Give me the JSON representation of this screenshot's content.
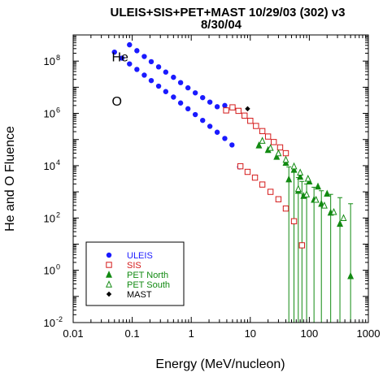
{
  "chart_data": {
    "type": "scatter",
    "title_line1": "ULEIS+SIS+PET+MAST 10/29/03 (302) v3",
    "title_line2": "8/30/04",
    "xlabel": "Energy (MeV/nucleon)",
    "ylabel": "He and O Fluence",
    "xscale": "log",
    "yscale": "log",
    "xlim": [
      0.01,
      1000
    ],
    "ylim": [
      0.01,
      1000000000
    ],
    "grid": false,
    "legend_position": "bottom-left",
    "x_tick_labels": [
      "0.01",
      "0.1",
      "1",
      "10",
      "100",
      "1000"
    ],
    "y_tick_labels": [
      {
        "base": "10",
        "exp": "-2"
      },
      {
        "base": "10",
        "exp": "0"
      },
      {
        "base": "10",
        "exp": "2"
      },
      {
        "base": "10",
        "exp": "4"
      },
      {
        "base": "10",
        "exp": "6"
      },
      {
        "base": "10",
        "exp": "8"
      }
    ],
    "annotations": [
      {
        "text": "He",
        "x": 0.085,
        "y": 150000000
      },
      {
        "text": "O",
        "x": 0.085,
        "y": 3000000
      }
    ],
    "series": [
      {
        "name": "ULEIS",
        "species": "He",
        "marker": "filled-circle",
        "color": "#1a1aff",
        "points": [
          [
            0.09,
            420000000
          ],
          [
            0.12,
            250000000
          ],
          [
            0.16,
            150000000
          ],
          [
            0.21,
            95000000
          ],
          [
            0.28,
            60000000
          ],
          [
            0.37,
            38000000
          ],
          [
            0.5,
            24000000
          ],
          [
            0.66,
            15000000
          ],
          [
            0.88,
            9500000
          ],
          [
            1.17,
            6100000
          ],
          [
            1.56,
            4000000
          ],
          [
            2.07,
            2700000
          ],
          [
            2.75,
            1800000
          ],
          [
            3.7,
            2000000
          ]
        ]
      },
      {
        "name": "ULEIS",
        "species": "O",
        "marker": "filled-circle",
        "color": "#1a1aff",
        "points": [
          [
            0.05,
            220000000
          ],
          [
            0.067,
            130000000
          ],
          [
            0.09,
            78000000
          ],
          [
            0.12,
            48000000
          ],
          [
            0.16,
            29000000
          ],
          [
            0.21,
            18000000
          ],
          [
            0.28,
            11000000
          ],
          [
            0.37,
            6800000
          ],
          [
            0.5,
            4200000
          ],
          [
            0.66,
            2500000
          ],
          [
            0.88,
            1500000
          ],
          [
            1.17,
            900000
          ],
          [
            1.56,
            540000
          ],
          [
            2.07,
            320000
          ],
          [
            2.75,
            190000
          ],
          [
            3.7,
            110000
          ],
          [
            4.9,
            62000
          ],
          [
            6.6,
            9000
          ]
        ]
      },
      {
        "name": "SIS",
        "species": "He",
        "marker": "open-square",
        "color": "#d41a1a",
        "points": [
          [
            3.9,
            1300000
          ],
          [
            5.0,
            1700000
          ],
          [
            6.3,
            1250000
          ],
          [
            8.0,
            820000
          ],
          [
            10.0,
            520000
          ],
          [
            12.5,
            330000
          ],
          [
            16.0,
            210000
          ],
          [
            20.0,
            130000
          ],
          [
            25.0,
            80000
          ],
          [
            32.0,
            50000
          ],
          [
            40.0,
            30000
          ]
        ]
      },
      {
        "name": "SIS",
        "species": "O",
        "marker": "open-square",
        "color": "#d41a1a",
        "points": [
          [
            6.8,
            9500
          ],
          [
            9.0,
            5800
          ],
          [
            12.0,
            3500
          ],
          [
            16.0,
            1900
          ],
          [
            22.0,
            1000
          ],
          [
            30.0,
            520
          ],
          [
            40.0,
            230
          ],
          [
            55.0,
            75
          ],
          [
            75.0,
            9
          ]
        ]
      },
      {
        "name": "PET North",
        "species": "He",
        "marker": "filled-triangle",
        "color": "#128a12",
        "points": [
          [
            14.0,
            60000
          ],
          [
            20.0,
            40000
          ],
          [
            28.0,
            22000
          ],
          [
            40.0,
            13000
          ],
          [
            55.0,
            7000
          ],
          [
            70.0,
            3800
          ],
          [
            100.0,
            2500
          ],
          [
            140.0,
            1600
          ],
          [
            200.0,
            850
          ]
        ]
      },
      {
        "name": "PET North",
        "species": "O",
        "marker": "filled-triangle",
        "color": "#128a12",
        "points": [
          [
            45.0,
            3000
          ],
          [
            65.0,
            1100
          ],
          [
            80.0,
            700
          ],
          [
            120.0,
            500
          ],
          [
            160.0,
            350
          ],
          [
            230.0,
            160
          ],
          [
            330.0,
            60
          ],
          [
            500.0,
            0.6
          ]
        ]
      },
      {
        "name": "PET South",
        "species": "He",
        "marker": "open-triangle",
        "color": "#128a12",
        "points": [
          [
            16.0,
            90000
          ],
          [
            22.0,
            48000
          ],
          [
            30.0,
            30000
          ],
          [
            40.0,
            17000
          ],
          [
            55.0,
            9500
          ],
          [
            70.0,
            5500
          ],
          [
            95.0,
            3200
          ]
        ]
      },
      {
        "name": "PET South",
        "species": "O",
        "marker": "open-triangle",
        "color": "#128a12",
        "points": [
          [
            65.0,
            1300
          ],
          [
            90.0,
            800
          ],
          [
            130.0,
            500
          ],
          [
            180.0,
            300
          ],
          [
            260.0,
            170
          ],
          [
            380.0,
            100
          ]
        ]
      },
      {
        "name": "MAST",
        "species": "He",
        "marker": "filled-diamond",
        "color": "#000000",
        "points": [
          [
            9.0,
            1500000
          ]
        ]
      }
    ],
    "error_bars_color": "#128a12",
    "error_bars": [
      {
        "x": 45.0,
        "lo": 0.01,
        "hi": 9000
      },
      {
        "x": 55.0,
        "lo": 0.01,
        "hi": 6000
      },
      {
        "x": 65.0,
        "lo": 0.01,
        "hi": 3500
      },
      {
        "x": 75.0,
        "lo": 0.01,
        "hi": 2500
      },
      {
        "x": 90.0,
        "lo": 0.01,
        "hi": 2000
      },
      {
        "x": 120.0,
        "lo": 0.01,
        "hi": 1500
      },
      {
        "x": 160.0,
        "lo": 0.01,
        "hi": 1100
      },
      {
        "x": 230.0,
        "lo": 0.01,
        "hi": 800
      },
      {
        "x": 330.0,
        "lo": 0.01,
        "hi": 600
      },
      {
        "x": 500.0,
        "lo": 0.01,
        "hi": 350
      }
    ],
    "legend": [
      {
        "label": "ULEIS",
        "marker": "filled-circle",
        "color": "#1a1aff"
      },
      {
        "label": "SIS",
        "marker": "open-square",
        "color": "#d41a1a"
      },
      {
        "label": "PET North",
        "marker": "filled-triangle",
        "color": "#128a12"
      },
      {
        "label": "PET South",
        "marker": "open-triangle",
        "color": "#128a12"
      },
      {
        "label": "MAST",
        "marker": "filled-diamond",
        "color": "#000000"
      }
    ]
  }
}
